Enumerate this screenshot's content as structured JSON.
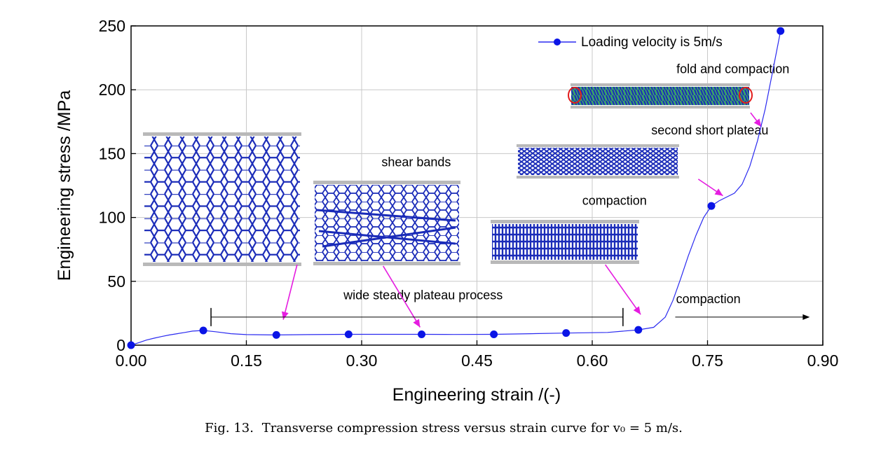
{
  "chart_data": {
    "type": "line",
    "title": "",
    "xlabel": "Engineering strain /(-)",
    "ylabel": "Engineering stress /MPa",
    "xlim": [
      0,
      0.9
    ],
    "ylim": [
      0,
      250
    ],
    "x_ticks": [
      0.0,
      0.15,
      0.3,
      0.45,
      0.6,
      0.75,
      0.9
    ],
    "x_tick_labels": [
      "0.00",
      "0.15",
      "0.30",
      "0.45",
      "0.60",
      "0.75",
      "0.90"
    ],
    "y_ticks": [
      0,
      50,
      100,
      150,
      200,
      250
    ],
    "y_tick_labels": [
      "0",
      "50",
      "100",
      "150",
      "200",
      "250"
    ],
    "grid": true,
    "legend": {
      "position": "top-right",
      "entries": [
        "Loading velocity is 5m/s"
      ]
    },
    "series": [
      {
        "name": "Loading velocity is 5m/s",
        "color": "#2a2af0",
        "marker_color": "#0a14e6",
        "curve": [
          [
            0.0,
            0.0
          ],
          [
            0.01,
            2.0
          ],
          [
            0.02,
            4.0
          ],
          [
            0.03,
            5.5
          ],
          [
            0.04,
            6.8
          ],
          [
            0.05,
            8.0
          ],
          [
            0.06,
            9.0
          ],
          [
            0.07,
            10.0
          ],
          [
            0.08,
            11.0
          ],
          [
            0.094,
            11.5
          ],
          [
            0.11,
            10.5
          ],
          [
            0.13,
            9.0
          ],
          [
            0.15,
            8.3
          ],
          [
            0.19,
            8.0
          ],
          [
            0.23,
            8.3
          ],
          [
            0.28,
            8.5
          ],
          [
            0.33,
            8.5
          ],
          [
            0.378,
            8.5
          ],
          [
            0.42,
            8.4
          ],
          [
            0.472,
            8.5
          ],
          [
            0.52,
            9.0
          ],
          [
            0.566,
            9.5
          ],
          [
            0.62,
            10.0
          ],
          [
            0.66,
            12.0
          ],
          [
            0.68,
            14.0
          ],
          [
            0.695,
            22.0
          ],
          [
            0.705,
            35.0
          ],
          [
            0.715,
            52.0
          ],
          [
            0.725,
            70.0
          ],
          [
            0.735,
            86.0
          ],
          [
            0.745,
            100.0
          ],
          [
            0.755,
            109.0
          ],
          [
            0.765,
            113.0
          ],
          [
            0.775,
            116.0
          ],
          [
            0.785,
            119.0
          ],
          [
            0.795,
            126.0
          ],
          [
            0.805,
            140.0
          ],
          [
            0.815,
            160.0
          ],
          [
            0.825,
            185.0
          ],
          [
            0.835,
            215.0
          ],
          [
            0.845,
            246.0
          ]
        ],
        "markers": [
          [
            0.0,
            0.0
          ],
          [
            0.094,
            11.5
          ],
          [
            0.189,
            8.0
          ],
          [
            0.283,
            8.5
          ],
          [
            0.378,
            8.5
          ],
          [
            0.472,
            8.5
          ],
          [
            0.566,
            9.5
          ],
          [
            0.66,
            12.0
          ],
          [
            0.755,
            109.0
          ],
          [
            0.845,
            246.0
          ]
        ]
      }
    ],
    "annotations": [
      {
        "text": "fold and compaction",
        "x": 0.783,
        "y": 213
      },
      {
        "text": "second short plateau",
        "x": 0.753,
        "y": 165
      },
      {
        "text": "shear bands",
        "x": 0.371,
        "y": 140
      },
      {
        "text": "compaction",
        "x": 0.629,
        "y": 110
      },
      {
        "text": "wide steady plateau process",
        "x": 0.38,
        "y": 36
      },
      {
        "text": "compaction",
        "x": 0.751,
        "y": 33
      }
    ],
    "arrows": [
      {
        "from": [
          0.806,
          182
        ],
        "to": [
          0.82,
          171
        ]
      },
      {
        "from": [
          0.738,
          130
        ],
        "to": [
          0.77,
          117
        ]
      },
      {
        "from": [
          0.216,
          63
        ],
        "to": [
          0.198,
          20
        ]
      },
      {
        "from": [
          0.328,
          62
        ],
        "to": [
          0.376,
          14
        ]
      },
      {
        "from": [
          0.617,
          63
        ],
        "to": [
          0.663,
          24
        ]
      }
    ],
    "plateau_bar": {
      "from": 0.104,
      "to": 0.64,
      "y": 22
    },
    "compaction_arrow": {
      "from": 0.708,
      "to": 0.883,
      "y": 22
    }
  },
  "insets": [
    {
      "name": "hexagonal-honeycomb-initial",
      "description_label": ""
    },
    {
      "name": "shear-bands-honeycomb",
      "description_label": "shear bands"
    },
    {
      "name": "compaction-honeycomb",
      "description_label": "compaction"
    },
    {
      "name": "second-plateau-honeycomb",
      "description_label": "second short plateau"
    },
    {
      "name": "fold-compaction-honeycomb",
      "description_label": "fold and compaction"
    }
  ],
  "caption": {
    "prefix": "Fig. 13.",
    "text": "Transverse compression stress versus strain curve for v₀ = 5 m/s."
  }
}
